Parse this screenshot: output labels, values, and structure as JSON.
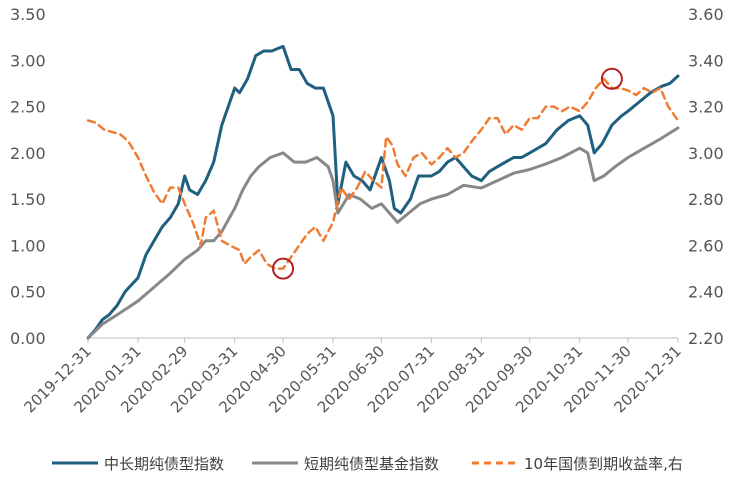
{
  "chart_data": {
    "type": "line",
    "title": "",
    "x_ticks": [
      "2019-12-31",
      "2020-01-31",
      "2020-02-29",
      "2020-03-31",
      "2020-04-30",
      "2020-05-31",
      "2020-06-30",
      "2020-07-31",
      "2020-08-31",
      "2020-09-30",
      "2020-10-31",
      "2020-11-30",
      "2020-12-31"
    ],
    "y_left": {
      "min": 0,
      "max": 3.5,
      "ticks": [
        "0.00",
        "0.50",
        "1.00",
        "1.50",
        "2.00",
        "2.50",
        "3.00",
        "3.50"
      ]
    },
    "y_right": {
      "min": 2.2,
      "max": 3.6,
      "ticks": [
        "2.20",
        "2.40",
        "2.60",
        "2.80",
        "3.00",
        "3.20",
        "3.40",
        "3.60"
      ]
    },
    "grid": false,
    "legend_position": "bottom",
    "series": [
      {
        "name": "中长期纯债型指数",
        "axis": "left",
        "color": "#1f5f80",
        "style": "solid",
        "points": [
          [
            "2019-12-31",
            0.0
          ],
          [
            "2020-01-05",
            0.1
          ],
          [
            "2020-01-09",
            0.2
          ],
          [
            "2020-01-13",
            0.25
          ],
          [
            "2020-01-18",
            0.35
          ],
          [
            "2020-01-23",
            0.5
          ],
          [
            "2020-01-31",
            0.65
          ],
          [
            "2020-02-05",
            0.9
          ],
          [
            "2020-02-10",
            1.05
          ],
          [
            "2020-02-15",
            1.2
          ],
          [
            "2020-02-20",
            1.3
          ],
          [
            "2020-02-25",
            1.45
          ],
          [
            "2020-02-29",
            1.75
          ],
          [
            "2020-03-03",
            1.6
          ],
          [
            "2020-03-08",
            1.55
          ],
          [
            "2020-03-13",
            1.7
          ],
          [
            "2020-03-18",
            1.9
          ],
          [
            "2020-03-23",
            2.3
          ],
          [
            "2020-03-28",
            2.55
          ],
          [
            "2020-03-31",
            2.7
          ],
          [
            "2020-04-03",
            2.65
          ],
          [
            "2020-04-08",
            2.8
          ],
          [
            "2020-04-13",
            3.05
          ],
          [
            "2020-04-18",
            3.1
          ],
          [
            "2020-04-23",
            3.1
          ],
          [
            "2020-04-30",
            3.15
          ],
          [
            "2020-05-05",
            2.9
          ],
          [
            "2020-05-10",
            2.9
          ],
          [
            "2020-05-15",
            2.75
          ],
          [
            "2020-05-20",
            2.7
          ],
          [
            "2020-05-25",
            2.7
          ],
          [
            "2020-05-31",
            2.4
          ],
          [
            "2020-06-03",
            1.45
          ],
          [
            "2020-06-08",
            1.9
          ],
          [
            "2020-06-13",
            1.75
          ],
          [
            "2020-06-18",
            1.7
          ],
          [
            "2020-06-23",
            1.6
          ],
          [
            "2020-06-30",
            1.95
          ],
          [
            "2020-07-05",
            1.7
          ],
          [
            "2020-07-08",
            1.4
          ],
          [
            "2020-07-12",
            1.35
          ],
          [
            "2020-07-18",
            1.5
          ],
          [
            "2020-07-23",
            1.75
          ],
          [
            "2020-07-31",
            1.75
          ],
          [
            "2020-08-05",
            1.8
          ],
          [
            "2020-08-10",
            1.9
          ],
          [
            "2020-08-15",
            1.95
          ],
          [
            "2020-08-20",
            1.85
          ],
          [
            "2020-08-25",
            1.75
          ],
          [
            "2020-08-31",
            1.7
          ],
          [
            "2020-09-05",
            1.8
          ],
          [
            "2020-09-10",
            1.85
          ],
          [
            "2020-09-15",
            1.9
          ],
          [
            "2020-09-20",
            1.95
          ],
          [
            "2020-09-25",
            1.95
          ],
          [
            "2020-09-30",
            2.0
          ],
          [
            "2020-10-10",
            2.1
          ],
          [
            "2020-10-17",
            2.25
          ],
          [
            "2020-10-24",
            2.35
          ],
          [
            "2020-10-31",
            2.4
          ],
          [
            "2020-11-05",
            2.3
          ],
          [
            "2020-11-09",
            2.0
          ],
          [
            "2020-11-14",
            2.1
          ],
          [
            "2020-11-20",
            2.3
          ],
          [
            "2020-11-26",
            2.4
          ],
          [
            "2020-11-30",
            2.45
          ],
          [
            "2020-12-07",
            2.55
          ],
          [
            "2020-12-14",
            2.65
          ],
          [
            "2020-12-21",
            2.72
          ],
          [
            "2020-12-26",
            2.75
          ],
          [
            "2020-12-31",
            2.83
          ]
        ]
      },
      {
        "name": "短期纯债型基金指数",
        "axis": "left",
        "color": "#888888",
        "style": "solid",
        "points": [
          [
            "2019-12-31",
            0.0
          ],
          [
            "2020-01-09",
            0.15
          ],
          [
            "2020-01-18",
            0.25
          ],
          [
            "2020-01-31",
            0.4
          ],
          [
            "2020-02-10",
            0.55
          ],
          [
            "2020-02-20",
            0.7
          ],
          [
            "2020-02-29",
            0.85
          ],
          [
            "2020-03-08",
            0.95
          ],
          [
            "2020-03-13",
            1.05
          ],
          [
            "2020-03-18",
            1.05
          ],
          [
            "2020-03-23",
            1.15
          ],
          [
            "2020-03-31",
            1.4
          ],
          [
            "2020-04-05",
            1.6
          ],
          [
            "2020-04-10",
            1.75
          ],
          [
            "2020-04-15",
            1.85
          ],
          [
            "2020-04-22",
            1.95
          ],
          [
            "2020-04-30",
            2.0
          ],
          [
            "2020-05-07",
            1.9
          ],
          [
            "2020-05-14",
            1.9
          ],
          [
            "2020-05-21",
            1.95
          ],
          [
            "2020-05-28",
            1.85
          ],
          [
            "2020-05-31",
            1.7
          ],
          [
            "2020-06-03",
            1.35
          ],
          [
            "2020-06-10",
            1.55
          ],
          [
            "2020-06-17",
            1.5
          ],
          [
            "2020-06-24",
            1.4
          ],
          [
            "2020-06-30",
            1.45
          ],
          [
            "2020-07-05",
            1.35
          ],
          [
            "2020-07-10",
            1.25
          ],
          [
            "2020-07-17",
            1.35
          ],
          [
            "2020-07-24",
            1.45
          ],
          [
            "2020-07-31",
            1.5
          ],
          [
            "2020-08-10",
            1.55
          ],
          [
            "2020-08-20",
            1.65
          ],
          [
            "2020-08-31",
            1.62
          ],
          [
            "2020-09-10",
            1.7
          ],
          [
            "2020-09-20",
            1.78
          ],
          [
            "2020-09-30",
            1.82
          ],
          [
            "2020-10-10",
            1.88
          ],
          [
            "2020-10-20",
            1.95
          ],
          [
            "2020-10-31",
            2.05
          ],
          [
            "2020-11-05",
            2.0
          ],
          [
            "2020-11-09",
            1.7
          ],
          [
            "2020-11-15",
            1.75
          ],
          [
            "2020-11-22",
            1.85
          ],
          [
            "2020-11-30",
            1.95
          ],
          [
            "2020-12-10",
            2.05
          ],
          [
            "2020-12-20",
            2.15
          ],
          [
            "2020-12-31",
            2.27
          ]
        ]
      },
      {
        "name": "10年国债到期收益率,右",
        "axis": "right",
        "color": "#f07c34",
        "style": "dashed",
        "points": [
          [
            "2019-12-31",
            3.14
          ],
          [
            "2020-01-05",
            3.13
          ],
          [
            "2020-01-10",
            3.1
          ],
          [
            "2020-01-15",
            3.09
          ],
          [
            "2020-01-20",
            3.08
          ],
          [
            "2020-01-25",
            3.05
          ],
          [
            "2020-01-31",
            2.98
          ],
          [
            "2020-02-05",
            2.9
          ],
          [
            "2020-02-10",
            2.83
          ],
          [
            "2020-02-15",
            2.78
          ],
          [
            "2020-02-20",
            2.85
          ],
          [
            "2020-02-25",
            2.85
          ],
          [
            "2020-02-29",
            2.78
          ],
          [
            "2020-03-05",
            2.7
          ],
          [
            "2020-03-10",
            2.6
          ],
          [
            "2020-03-13",
            2.72
          ],
          [
            "2020-03-18",
            2.75
          ],
          [
            "2020-03-23",
            2.62
          ],
          [
            "2020-03-28",
            2.6
          ],
          [
            "2020-04-03",
            2.58
          ],
          [
            "2020-04-06",
            2.52
          ],
          [
            "2020-04-10",
            2.55
          ],
          [
            "2020-04-15",
            2.58
          ],
          [
            "2020-04-20",
            2.52
          ],
          [
            "2020-04-25",
            2.5
          ],
          [
            "2020-04-30",
            2.5
          ],
          [
            "2020-05-05",
            2.55
          ],
          [
            "2020-05-10",
            2.6
          ],
          [
            "2020-05-15",
            2.65
          ],
          [
            "2020-05-20",
            2.68
          ],
          [
            "2020-05-25",
            2.62
          ],
          [
            "2020-05-31",
            2.7
          ],
          [
            "2020-06-05",
            2.85
          ],
          [
            "2020-06-10",
            2.8
          ],
          [
            "2020-06-15",
            2.85
          ],
          [
            "2020-06-20",
            2.92
          ],
          [
            "2020-06-25",
            2.88
          ],
          [
            "2020-06-30",
            2.85
          ],
          [
            "2020-07-03",
            3.07
          ],
          [
            "2020-07-07",
            3.03
          ],
          [
            "2020-07-10",
            2.95
          ],
          [
            "2020-07-15",
            2.9
          ],
          [
            "2020-07-20",
            2.98
          ],
          [
            "2020-07-25",
            3.0
          ],
          [
            "2020-07-31",
            2.95
          ],
          [
            "2020-08-05",
            2.98
          ],
          [
            "2020-08-10",
            3.02
          ],
          [
            "2020-08-15",
            2.98
          ],
          [
            "2020-08-20",
            3.0
          ],
          [
            "2020-08-25",
            3.05
          ],
          [
            "2020-08-31",
            3.1
          ],
          [
            "2020-09-05",
            3.15
          ],
          [
            "2020-09-10",
            3.15
          ],
          [
            "2020-09-15",
            3.08
          ],
          [
            "2020-09-20",
            3.12
          ],
          [
            "2020-09-25",
            3.1
          ],
          [
            "2020-09-30",
            3.15
          ],
          [
            "2020-10-05",
            3.15
          ],
          [
            "2020-10-10",
            3.2
          ],
          [
            "2020-10-15",
            3.2
          ],
          [
            "2020-10-20",
            3.18
          ],
          [
            "2020-10-25",
            3.2
          ],
          [
            "2020-10-31",
            3.18
          ],
          [
            "2020-11-05",
            3.22
          ],
          [
            "2020-11-10",
            3.28
          ],
          [
            "2020-11-15",
            3.32
          ],
          [
            "2020-11-20",
            3.28
          ],
          [
            "2020-11-25",
            3.28
          ],
          [
            "2020-11-30",
            3.27
          ],
          [
            "2020-12-05",
            3.25
          ],
          [
            "2020-12-10",
            3.28
          ],
          [
            "2020-12-15",
            3.26
          ],
          [
            "2020-12-20",
            3.28
          ],
          [
            "2020-12-25",
            3.2
          ],
          [
            "2020-12-31",
            3.14
          ]
        ]
      }
    ],
    "annotations": [
      {
        "type": "circle-marker",
        "axis": "right",
        "x": "2020-04-30",
        "y": 2.5,
        "color": "#b22222"
      },
      {
        "type": "circle-marker",
        "axis": "right",
        "x": "2020-11-20",
        "y": 3.32,
        "color": "#b22222"
      }
    ]
  }
}
